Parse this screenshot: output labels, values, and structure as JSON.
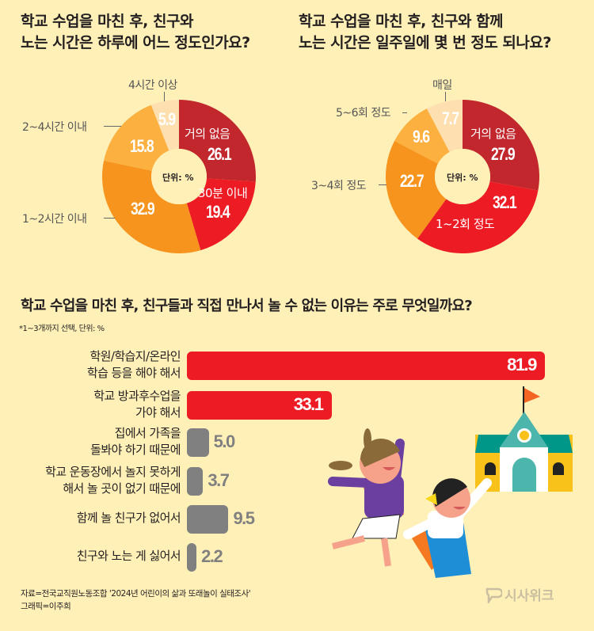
{
  "chart_data": [
    {
      "type": "pie",
      "title": "학교 수업을 마친 후, 친구와\n노는 시간은 하루에 어느 정도인가요?",
      "unit_label": "단위: %",
      "categories": [
        "거의 없음",
        "30분 이내",
        "1~2시간 이내",
        "2~4시간 이내",
        "4시간 이상"
      ],
      "values": [
        26.1,
        19.4,
        32.9,
        15.8,
        5.9
      ],
      "colors": [
        "#C1272D",
        "#ED1C24",
        "#F7941D",
        "#FBB040",
        "#FDDFB0"
      ]
    },
    {
      "type": "pie",
      "title": "학교 수업을 마친 후, 친구와 함께\n노는 시간은 일주일에 몇 번 정도 되나요?",
      "unit_label": "단위: %",
      "categories": [
        "거의 없음",
        "1~2회 정도",
        "3~4회 정도",
        "5~6회 정도",
        "매일"
      ],
      "values": [
        27.9,
        32.1,
        22.7,
        9.6,
        7.7
      ],
      "colors": [
        "#C1272D",
        "#ED1C24",
        "#F7941D",
        "#FBB040",
        "#FDDFB0"
      ]
    },
    {
      "type": "bar",
      "orientation": "horizontal",
      "title": "학교 수업을 마친 후, 친구들과 직접 만나서 놀 수 없는 이유는 주로 무엇일까요?",
      "note": "*1~3개까지 선택, 단위: %",
      "categories": [
        "학원/학습지/온라인\n학습 등을 해야 해서",
        "학교 방과후수업을\n가야 해서",
        "집에서 가족을\n돌봐야 하기 때문에",
        "학교 운동장에서 놀지 못하게\n해서 놀 곳이 없기 때문에",
        "함께 놀 친구가 없어서",
        "친구와 노는 게 싫어서"
      ],
      "values": [
        81.9,
        33.1,
        5.0,
        3.7,
        9.5,
        2.2
      ],
      "value_labels": [
        "81.9",
        "33.1",
        "5.0",
        "3.7",
        "9.5",
        "2.2"
      ],
      "colors": [
        "#ED1C24",
        "#ED1C24",
        "#808080",
        "#808080",
        "#808080",
        "#808080"
      ]
    }
  ],
  "footer": {
    "source": "자료=전국교직원노동조합 '2024년 어린이의 삶과 또래놀이 실태조사'\n그래픽=이주희",
    "logo_text": "시사위크"
  }
}
